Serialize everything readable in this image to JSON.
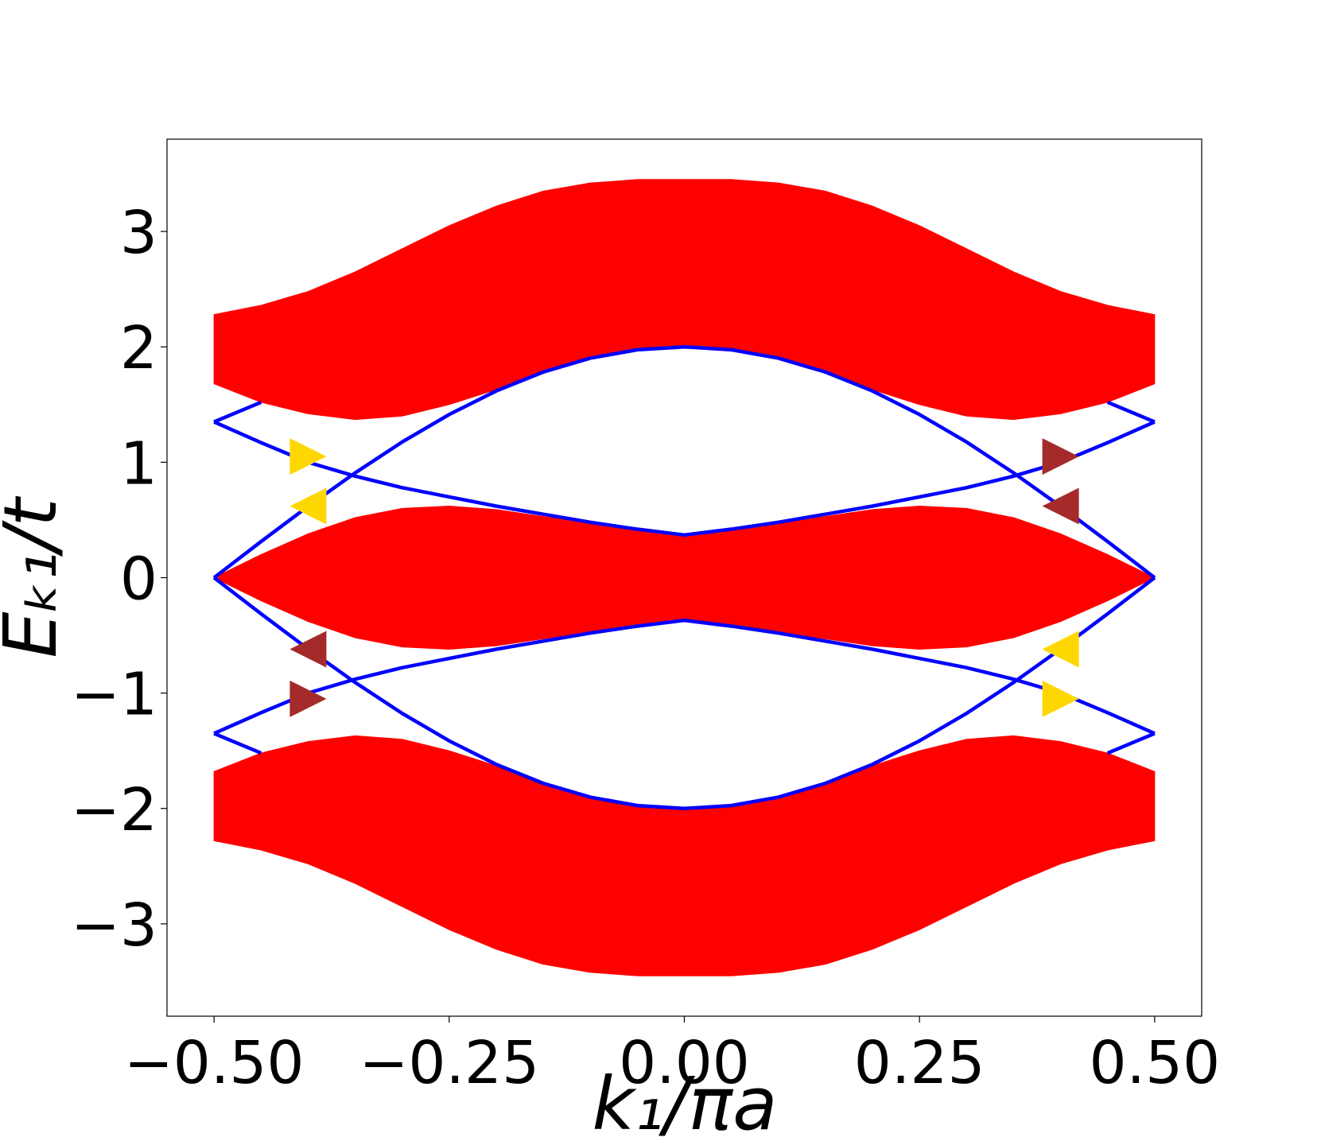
{
  "chart_data": {
    "type": "band_structure",
    "xlabel": "k₁/πa",
    "ylabel": "Eₖ₁/t",
    "xlim": [
      -0.55,
      0.55
    ],
    "ylim": [
      -3.8,
      3.8
    ],
    "xticks": [
      {
        "value": -0.5,
        "label": "−0.50"
      },
      {
        "value": -0.25,
        "label": "−0.25"
      },
      {
        "value": 0,
        "label": "0.00"
      },
      0.25,
      {
        "value": 0.5,
        "label": "0.50"
      }
    ],
    "yticks": [
      {
        "value": -3,
        "label": "−3"
      },
      {
        "value": -2,
        "label": "−2"
      },
      {
        "value": -1,
        "label": "−1"
      },
      0,
      1,
      2,
      3
    ],
    "x": [
      -0.5,
      -0.45,
      -0.4,
      -0.35,
      -0.3,
      -0.25,
      -0.2,
      -0.15,
      -0.1,
      -0.05,
      0,
      0.05,
      0.1,
      0.15,
      0.2,
      0.25,
      0.3,
      0.35,
      0.4,
      0.45,
      0.5
    ],
    "bands": [
      {
        "color": "#ff0000",
        "upper": [
          2.28,
          2.36,
          2.48,
          2.65,
          2.85,
          3.05,
          3.22,
          3.35,
          3.42,
          3.45,
          3.45,
          3.45,
          3.42,
          3.35,
          3.22,
          3.05,
          2.85,
          2.65,
          2.48,
          2.36,
          2.28
        ],
        "lower": [
          1.68,
          1.52,
          1.42,
          1.37,
          1.4,
          1.5,
          1.63,
          1.78,
          1.9,
          1.98,
          2.0,
          1.98,
          1.9,
          1.78,
          1.63,
          1.5,
          1.4,
          1.37,
          1.42,
          1.52,
          1.68
        ]
      },
      {
        "color": "#ff0000",
        "upper": [
          0,
          0.2,
          0.38,
          0.52,
          0.6,
          0.62,
          0.59,
          0.53,
          0.47,
          0.42,
          0.37,
          0.42,
          0.47,
          0.53,
          0.59,
          0.62,
          0.6,
          0.52,
          0.38,
          0.2,
          0
        ],
        "lower": [
          0,
          -0.2,
          -0.38,
          -0.52,
          -0.6,
          -0.62,
          -0.59,
          -0.53,
          -0.47,
          -0.42,
          -0.37,
          -0.42,
          -0.47,
          -0.53,
          -0.59,
          -0.62,
          -0.6,
          -0.52,
          -0.38,
          -0.2,
          0
        ]
      },
      {
        "color": "#ff0000",
        "upper": [
          -1.68,
          -1.52,
          -1.42,
          -1.37,
          -1.4,
          -1.5,
          -1.63,
          -1.78,
          -1.9,
          -1.98,
          -2.0,
          -1.98,
          -1.9,
          -1.78,
          -1.63,
          -1.5,
          -1.4,
          -1.37,
          -1.42,
          -1.52,
          -1.68
        ],
        "lower": [
          -2.28,
          -2.36,
          -2.48,
          -2.65,
          -2.85,
          -3.05,
          -3.22,
          -3.35,
          -3.42,
          -3.45,
          -3.45,
          -3.45,
          -3.42,
          -3.35,
          -3.22,
          -3.05,
          -2.85,
          -2.65,
          -2.48,
          -2.36,
          -2.28
        ]
      }
    ],
    "series": [
      {
        "color": "#0000ff",
        "values": [
          0,
          0.313,
          0.618,
          0.908,
          1.176,
          1.414,
          1.618,
          1.782,
          1.902,
          1.975,
          2.0,
          1.975,
          1.902,
          1.782,
          1.618,
          1.414,
          1.176,
          0.908,
          0.618,
          0.313,
          0
        ]
      },
      {
        "color": "#0000ff",
        "values": [
          0,
          -0.313,
          -0.618,
          -0.908,
          -1.176,
          -1.414,
          -1.618,
          -1.782,
          -1.902,
          -1.975,
          -2.0,
          -1.975,
          -1.902,
          -1.782,
          -1.618,
          -1.414,
          -1.176,
          -0.908,
          -0.618,
          -0.313,
          0
        ]
      },
      {
        "color": "#0000ff",
        "values": [
          1.35,
          1.17,
          1.0,
          0.88,
          0.78,
          0.7,
          0.62,
          0.55,
          0.48,
          0.42,
          0.37,
          0.42,
          0.48,
          0.55,
          0.62,
          0.7,
          0.78,
          0.88,
          1.0,
          1.17,
          1.35
        ]
      },
      {
        "color": "#0000ff",
        "values": [
          -1.35,
          -1.17,
          -1.0,
          -0.88,
          -0.78,
          -0.7,
          -0.62,
          -0.55,
          -0.48,
          -0.42,
          -0.37,
          -0.42,
          -0.48,
          -0.55,
          -0.62,
          -0.7,
          -0.78,
          -0.88,
          -1.0,
          -1.17,
          -1.35
        ]
      },
      {
        "color": "#0000ff",
        "values": [
          1.35,
          1.52,
          null,
          null,
          null,
          null,
          null,
          null,
          null,
          null,
          null,
          null,
          null,
          null,
          null,
          null,
          null,
          null,
          null,
          1.52,
          1.35
        ]
      },
      {
        "color": "#0000ff",
        "values": [
          -1.35,
          -1.52,
          null,
          null,
          null,
          null,
          null,
          null,
          null,
          null,
          null,
          null,
          null,
          null,
          null,
          null,
          null,
          null,
          null,
          -1.52,
          -1.35
        ]
      }
    ],
    "markers": [
      {
        "x": -0.4,
        "y": 1.05,
        "direction": "right",
        "color": "#ffd700"
      },
      {
        "x": -0.4,
        "y": 0.62,
        "direction": "left",
        "color": "#ffd700"
      },
      {
        "x": -0.4,
        "y": -0.62,
        "direction": "left",
        "color": "#a52a2a"
      },
      {
        "x": -0.4,
        "y": -1.05,
        "direction": "right",
        "color": "#a52a2a"
      },
      {
        "x": 0.4,
        "y": 1.05,
        "direction": "right",
        "color": "#a52a2a"
      },
      {
        "x": 0.4,
        "y": 0.62,
        "direction": "left",
        "color": "#a52a2a"
      },
      {
        "x": 0.4,
        "y": -0.62,
        "direction": "left",
        "color": "#ffd700"
      },
      {
        "x": 0.4,
        "y": -1.05,
        "direction": "right",
        "color": "#ffd700"
      }
    ]
  }
}
